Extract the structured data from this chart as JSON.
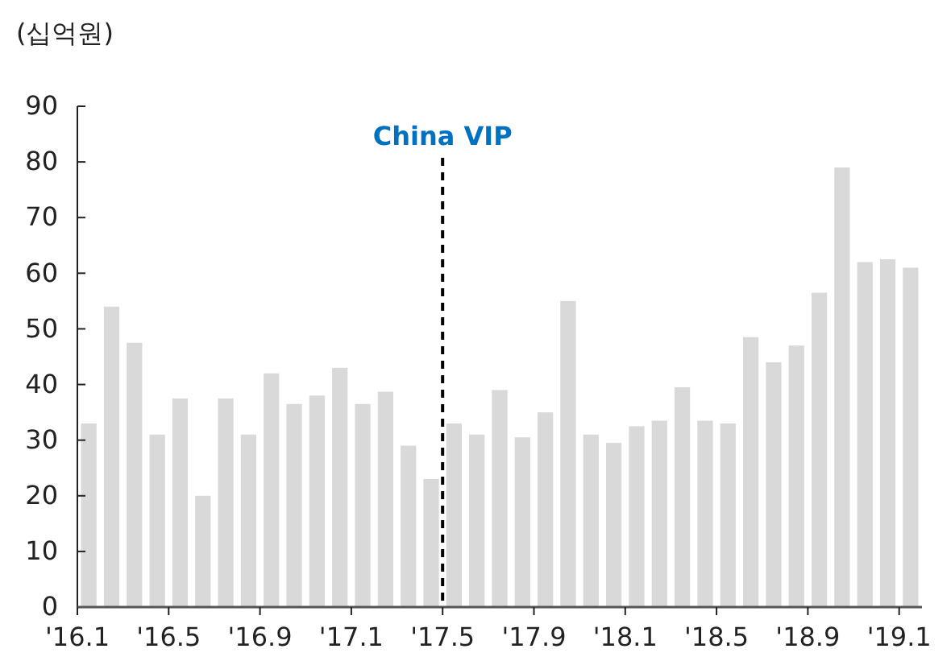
{
  "chart_data": {
    "type": "bar",
    "ylabel": "(십억원)",
    "categories": [
      "'16.1",
      null,
      null,
      null,
      "'16.5",
      null,
      null,
      null,
      "'16.9",
      null,
      null,
      null,
      "'17.1",
      null,
      null,
      null,
      "'17.5",
      null,
      null,
      null,
      "'17.9",
      null,
      null,
      null,
      "'18.1",
      null,
      null,
      null,
      "'18.5",
      null,
      null,
      null,
      "'18.9",
      null,
      null,
      null,
      "'19.1"
    ],
    "series": [
      {
        "color": "#d9d9d9",
        "values": [
          33,
          54,
          47.5,
          31,
          37.5,
          20,
          37.5,
          31,
          42,
          36.5,
          38,
          43,
          36.5,
          38.7,
          29,
          23,
          33,
          31,
          39,
          30.5,
          35,
          55,
          31,
          29.5,
          32.5,
          33.5,
          39.5,
          33.5,
          33,
          48.5,
          44,
          47,
          56.5,
          79,
          62,
          62.5,
          61
        ]
      }
    ],
    "ylim": [
      0,
      90
    ],
    "yticks": [
      0,
      10,
      20,
      30,
      40,
      50,
      60,
      70,
      80,
      90
    ],
    "grid": false,
    "ref_lines": [
      {
        "axis": "x",
        "value": "'17.5",
        "label": "China VIP",
        "color": "#000000",
        "line_style": "dashed"
      }
    ]
  }
}
